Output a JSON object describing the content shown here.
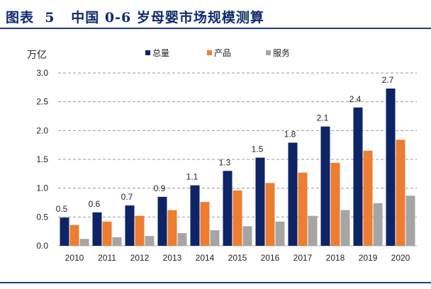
{
  "header": {
    "title": "图表  5   中国 0-6 岁母婴市场规模测算"
  },
  "chart_data": {
    "type": "bar",
    "title": "",
    "ylabel": "万亿",
    "xlabel": "",
    "ylim": [
      0,
      3.0
    ],
    "yticks": [
      "0.0",
      "0.5",
      "1.0",
      "1.5",
      "2.0",
      "2.5",
      "3.0"
    ],
    "grid": true,
    "legend_position": "top",
    "categories": [
      "2010",
      "2011",
      "2012",
      "2013",
      "2014",
      "2015",
      "2016",
      "2017",
      "2018",
      "2019",
      "2020"
    ],
    "series": [
      {
        "name": "总量",
        "color": "#0d2466",
        "values": [
          0.49,
          0.58,
          0.7,
          0.85,
          1.05,
          1.3,
          1.53,
          1.79,
          2.07,
          2.4,
          2.73
        ],
        "labels": [
          "0.5",
          "0.6",
          "0.7",
          "0.9",
          "1.1",
          "1.3",
          "1.5",
          "1.8",
          "2.1",
          "2.4",
          "2.7"
        ]
      },
      {
        "name": "产品",
        "color": "#ed7d31",
        "values": [
          0.36,
          0.42,
          0.52,
          0.62,
          0.76,
          0.96,
          1.09,
          1.27,
          1.44,
          1.65,
          1.84
        ]
      },
      {
        "name": "服务",
        "color": "#a5a5a5",
        "values": [
          0.12,
          0.15,
          0.17,
          0.22,
          0.27,
          0.34,
          0.42,
          0.52,
          0.62,
          0.74,
          0.87
        ]
      }
    ]
  }
}
